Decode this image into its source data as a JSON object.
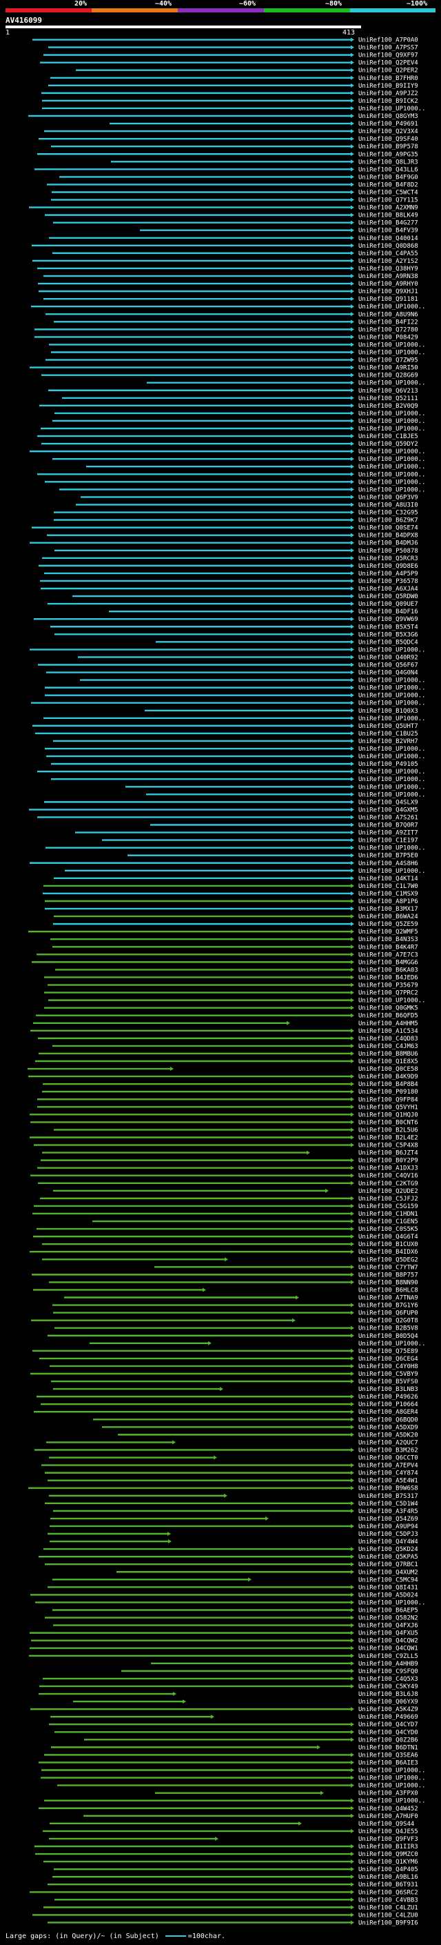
{
  "legend": {
    "labels": [
      "20%",
      "~40%",
      "~60%",
      "~80%",
      "~100%"
    ],
    "colors": [
      "#e01b24",
      "#e57918",
      "#8e2ec0",
      "#1fb81f",
      "#2ec9d6"
    ]
  },
  "query": {
    "id": "AV416099",
    "start": "1",
    "end": "413"
  },
  "colors": {
    "high": "#32c8de",
    "mid": "#53b52e",
    "gap": "#ffffff",
    "bg": "#000000"
  },
  "footer": {
    "text_left": "Large gaps: ",
    "text_query": "(in Query)/~ (in Subject)",
    "scale": "=100char."
  },
  "hits": [
    "UniRef100_A7P0A0",
    "UniRef100_A7PSS7",
    "UniRef100_Q9XF97",
    "UniRef100_Q2PEV4",
    "UniRef100_Q2PER2",
    "UniRef100_B7FHR0",
    "UniRef100_B9IIY9",
    "UniRef100_A9PJZ2",
    "UniRef100_B9ICK2",
    "UniRef100_UP1000..",
    "UniRef100_Q8GYM3",
    "UniRef100_P49691",
    "UniRef100_Q2V3X4",
    "UniRef100_Q9SF40",
    "UniRef100_B9P578",
    "UniRef100_A9PG35",
    "UniRef100_Q8LJR3",
    "UniRef100_Q43LL6",
    "UniRef100_B4F9G0",
    "UniRef100_B4F8D2",
    "UniRef100_C5WCT4",
    "UniRef100_Q7Y115",
    "UniRef100_A2XMN9",
    "UniRef100_B8LK49",
    "UniRef100_B4G277",
    "UniRef100_B4FV39",
    "UniRef100_Q40014",
    "UniRef100_Q0D868",
    "UniRef100_C4PA55",
    "UniRef100_A2Y1S2",
    "UniRef100_Q38HY9",
    "UniRef100_A9RN38",
    "UniRef100_A9RHY0",
    "UniRef100_Q9XHJ1",
    "UniRef100_Q91181",
    "UniRef100_UP1000..",
    "UniRef100_A8U9N6",
    "UniRef100_B4FI22",
    "UniRef100_Q72780",
    "UniRef100_P08429",
    "UniRef100_UP1000..",
    "UniRef100_UP1000..",
    "UniRef100_Q7ZW95",
    "UniRef100_A9RI50",
    "UniRef100_Q28G69",
    "UniRef100_UP1000..",
    "UniRef100_Q6V213",
    "UniRef100_Q52111",
    "UniRef100_B2V0Q9",
    "UniRef100_UP1000..",
    "UniRef100_UP1000..",
    "UniRef100_UP1000..",
    "UniRef100_C1BJE5",
    "UniRef100_Q59DY2",
    "UniRef100_UP1000..",
    "UniRef100_UP1000..",
    "UniRef100_UP1000..",
    "UniRef100_UP1000..",
    "UniRef100_UP1000..",
    "UniRef100_UP1000..",
    "UniRef100_Q6P3V9",
    "UniRef100_A8U3I0",
    "UniRef100_C32G95",
    "UniRef100_B6Z9K7",
    "UniRef100_Q0SE74",
    "UniRef100_B4DPX8",
    "UniRef100_B4DMJ6",
    "UniRef100_P50878",
    "UniRef100_Q5RCR3",
    "UniRef100_Q9D8E6",
    "UniRef100_A4P5P9",
    "UniRef100_P36578",
    "UniRef100_A6XJA4",
    "UniRef100_Q5RDW0",
    "UniRef100_Q09UE7",
    "UniRef100_B4DF16",
    "UniRef100_Q9VW69",
    "UniRef100_B5X5T4",
    "UniRef100_B5X3G6",
    "UniRef100_B5QDC4",
    "UniRef100_UP1000..",
    "UniRef100_Q40R92",
    "UniRef100_Q56F67",
    "UniRef100_Q4G0N4",
    "UniRef100_UP1000..",
    "UniRef100_UP1000..",
    "UniRef100_UP1000..",
    "UniRef100_UP1000..",
    "UniRef100_B1Q0X3",
    "UniRef100_UP1000..",
    "UniRef100_Q5UHT7",
    "UniRef100_C1BU25",
    "UniRef100_B2VRH7",
    "UniRef100_UP1000..",
    "UniRef100_UP1000..",
    "UniRef100_P49105",
    "UniRef100_UP1000..",
    "UniRef100_UP1000..",
    "UniRef100_UP1000..",
    "UniRef100_UP1000..",
    "UniRef100_Q4SLX9",
    "UniRef100_Q4GXM5",
    "UniRef100_A7S261",
    "UniRef100_B7Q0R7",
    "UniRef100_A9ZIT7",
    "UniRef100_C1E197",
    "UniRef100_UP1000..",
    "UniRef100_B7P5E0",
    "UniRef100_A4S8H6",
    "UniRef100_UP1000..",
    "UniRef100_Q4KT14",
    "UniRef100_C1L7W0",
    "UniRef100_C1MSX9",
    "UniRef100_A8P1P6",
    "UniRef100_B3MX17",
    "UniRef100_B6WA24",
    "UniRef100_Q5ZE59",
    "UniRef100_Q2WMF5",
    "UniRef100_B4N3S3",
    "UniRef100_B4K4R7",
    "UniRef100_A7E7C3",
    "UniRef100_B4MGG6",
    "UniRef100_B6KA03",
    "UniRef100_B4JED6",
    "UniRef100_P35679",
    "UniRef100_Q7PRC2",
    "UniRef100_UP1000..",
    "UniRef100_Q0GMK5",
    "UniRef100_B6QFD5",
    "UniRef100_A4HHM5",
    "UniRef100_A1C534",
    "UniRef100_C4QD83",
    "UniRef100_C4JM63",
    "UniRef100_B8MBU6",
    "UniRef100_Q1E8X5",
    "UniRef100_Q0CE58",
    "UniRef100_B4K9D9",
    "UniRef100_B4P8B4",
    "UniRef100_P09180",
    "UniRef100_Q9FP84",
    "UniRef100_Q5VYH1",
    "UniRef100_Q1HQJ0",
    "UniRef100_B0CNT6",
    "UniRef100_B2L5U6",
    "UniRef100_B2L4E2",
    "UniRef100_C5P4X8",
    "UniRef100_B6JZT4",
    "UniRef100_B0Y2P9",
    "UniRef100_A1DXJ3",
    "UniRef100_C4QV16",
    "UniRef100_C2KTG9",
    "UniRef100_Q2UDE2",
    "UniRef100_C5JFJ2",
    "UniRef100_C5G159",
    "UniRef100_C1HDN1",
    "UniRef100_C1GEN5",
    "UniRef100_C0S5K5",
    "UniRef100_Q4G6T4",
    "UniRef100_B1CUX0",
    "UniRef100_B4IDX6",
    "UniRef100_Q5DEG2",
    "UniRef100_C7YTW7",
    "UniRef100_B8P757",
    "UniRef100_B8NN90",
    "UniRef100_B6HLC8",
    "UniRef100_A7TNA9",
    "UniRef100_B7G1Y6",
    "UniRef100_Q6FUP0",
    "UniRef100_Q2G0T8",
    "UniRef100_B2B5V8",
    "UniRef100_B0D5Q4",
    "UniRef100_UP1000..",
    "UniRef100_Q75E89",
    "UniRef100_Q6CEG4",
    "UniRef100_C4Y0H8",
    "UniRef100_C5VBY9",
    "UniRef100_B5VFS0",
    "UniRef100_B3LNB3",
    "UniRef100_P49626",
    "UniRef100_P10664",
    "UniRef100_A8GER4",
    "UniRef100_Q6BQD0",
    "UniRef100_A5DXD9",
    "UniRef100_A5DK20",
    "UniRef100_A2QUC7",
    "UniRef100_B3M262",
    "UniRef100_Q6CCT0",
    "UniRef100_A7EPV4",
    "UniRef100_C4Y874",
    "UniRef100_A5E4W1",
    "UniRef100_B9W6S8",
    "UniRef100_B7S317",
    "UniRef100_C5D1W4",
    "UniRef100_A3F4R5",
    "UniRef100_Q54Z69",
    "UniRef100_A9UP94",
    "UniRef100_C5DPJ3",
    "UniRef100_Q4Y4W4",
    "UniRef100_Q5KD24",
    "UniRef100_Q5KPA5",
    "UniRef100_Q7RBC1",
    "UniRef100_Q4XUM2",
    "UniRef100_C5MC94",
    "UniRef100_Q8I431",
    "UniRef100_A5D024",
    "UniRef100_UP1000..",
    "UniRef100_B6AEP5",
    "UniRef100_Q582N2",
    "UniRef100_Q4FXJ6",
    "UniRef100_Q4FXU5",
    "UniRef100_Q4CQW2",
    "UniRef100_Q4CQW1",
    "UniRef100_C9ZLL5",
    "UniRef100_A4HHB9",
    "UniRef100_C9SFQ0",
    "UniRef100_C4Q5X3",
    "UniRef100_C5KY49",
    "UniRef100_B3L6J8",
    "UniRef100_Q06YX9",
    "UniRef100_A5K4Z9",
    "UniRef100_P49669",
    "UniRef100_Q4CYD7",
    "UniRef100_Q4CYD0",
    "UniRef100_Q0Z2B6",
    "UniRef100_B6DTN1",
    "UniRef100_Q3SEA6",
    "UniRef100_B6AIE3",
    "UniRef100_UP1000..",
    "UniRef100_UP1000..",
    "UniRef100_UP1000..",
    "UniRef100_A3FPX0",
    "UniRef100_UP1000..",
    "UniRef100_Q4W452",
    "UniRef100_A7HUF0",
    "UniRef100_Q9S44",
    "UniRef100_Q4JE55",
    "UniRef100_Q9FVF3",
    "UniRef100_B1IIR3",
    "UniRef100_Q9MZC0",
    "UniRef100_Q1KYM6",
    "UniRef100_Q4P405",
    "UniRef100_A9BL16",
    "UniRef100_B6T931",
    "UniRef100_Q6SRC2",
    "UniRef100_C4VBB3",
    "UniRef100_C4LZU1",
    "UniRef100_C4LZU0",
    "UniRef100_B9F9I6"
  ]
}
